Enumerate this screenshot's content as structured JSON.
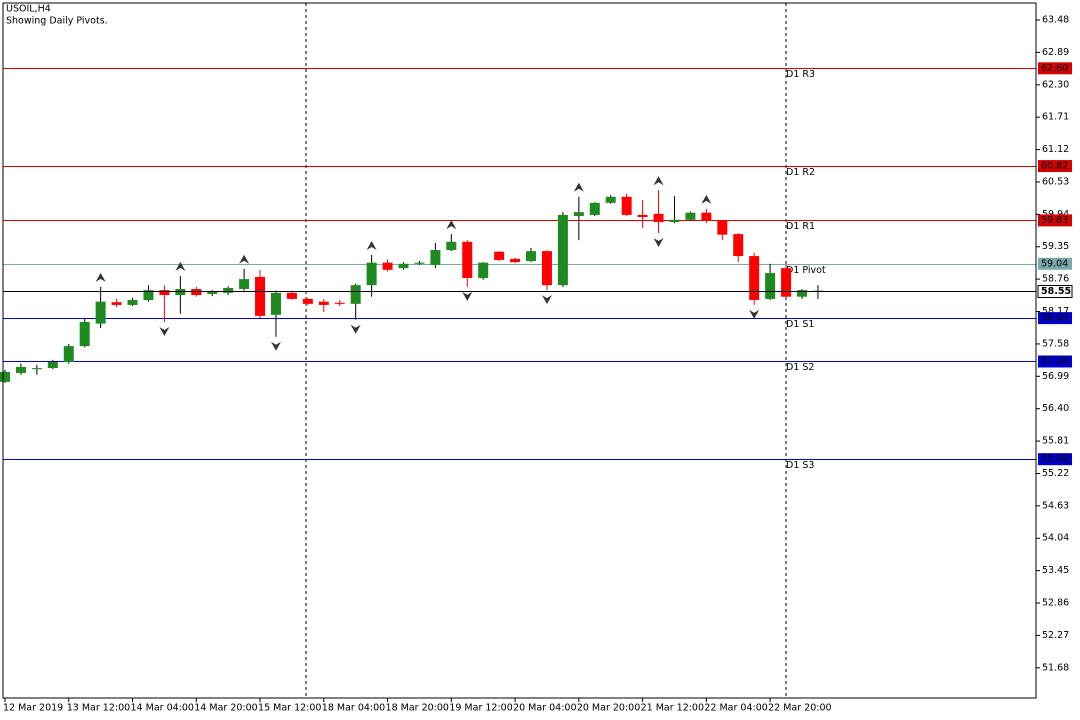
{
  "chart_data": {
    "type": "candlestick",
    "title": "USOIL,H4",
    "subtitle": "Showing Daily Pivots.",
    "categories": [
      "12 Mar 2019",
      null,
      null,
      null,
      "13 Mar 12:00",
      null,
      null,
      null,
      "14 Mar 04:00",
      null,
      null,
      null,
      "14 Mar 20:00",
      null,
      null,
      null,
      "15 Mar 12:00",
      null,
      null,
      null,
      "18 Mar 04:00",
      null,
      null,
      null,
      "18 Mar 20:00",
      null,
      null,
      null,
      "19 Mar 12:00",
      null,
      null,
      null,
      "20 Mar 04:00",
      null,
      null,
      null,
      "20 Mar 20:00",
      null,
      null,
      null,
      "21 Mar 12:00",
      null,
      null,
      null,
      "22 Mar 04:00",
      null,
      null,
      null,
      "22 Mar 20:00",
      null,
      null,
      null
    ],
    "open": [
      56.89,
      57.05,
      57.12,
      57.14,
      57.25,
      57.54,
      57.95,
      58.34,
      58.29,
      58.38,
      58.56,
      58.47,
      58.58,
      58.49,
      58.51,
      58.58,
      58.8,
      58.11,
      58.51,
      58.4,
      58.35,
      58.33,
      58.31,
      58.65,
      59.06,
      58.96,
      59.04,
      59.02,
      59.29,
      59.44,
      58.78,
      59.26,
      59.13,
      59.09,
      59.27,
      58.65,
      59.91,
      59.93,
      60.15,
      60.26,
      59.93,
      59.95,
      59.8,
      59.84,
      59.97,
      59.82,
      59.58,
      59.18,
      58.4,
      58.96,
      58.44,
      58.55
    ],
    "high": [
      57.11,
      57.22,
      57.2,
      57.29,
      57.58,
      58.05,
      58.62,
      58.4,
      58.42,
      58.65,
      58.65,
      58.82,
      58.62,
      58.56,
      58.63,
      58.95,
      58.93,
      58.55,
      58.55,
      58.42,
      58.4,
      58.38,
      58.67,
      59.2,
      59.12,
      59.07,
      59.09,
      59.42,
      59.58,
      59.47,
      59.07,
      59.27,
      59.15,
      59.33,
      59.29,
      59.98,
      60.26,
      60.16,
      60.29,
      60.31,
      60.2,
      60.38,
      60.27,
      59.99,
      60.04,
      59.84,
      59.6,
      59.24,
      59.04,
      59.02,
      58.58,
      58.65
    ],
    "low": [
      56.87,
      57.02,
      57.02,
      57.12,
      57.22,
      57.52,
      57.87,
      58.25,
      58.27,
      58.35,
      57.98,
      58.13,
      58.44,
      58.45,
      58.47,
      58.55,
      58.05,
      57.71,
      58.38,
      58.29,
      58.16,
      58.27,
      58.02,
      58.44,
      58.9,
      58.93,
      59.02,
      58.96,
      59.27,
      58.62,
      58.75,
      59.09,
      59.05,
      59.07,
      58.56,
      58.62,
      59.47,
      59.91,
      60.13,
      59.91,
      59.69,
      59.6,
      59.78,
      59.82,
      59.78,
      59.47,
      59.07,
      58.29,
      58.38,
      58.42,
      58.4,
      58.4
    ],
    "close": [
      57.07,
      57.16,
      57.14,
      57.25,
      57.54,
      57.98,
      58.35,
      58.29,
      58.38,
      58.56,
      58.47,
      58.58,
      58.47,
      58.53,
      58.6,
      58.76,
      58.09,
      58.51,
      58.4,
      58.31,
      58.29,
      58.31,
      58.65,
      59.06,
      58.93,
      59.04,
      59.06,
      59.29,
      59.44,
      58.78,
      59.06,
      59.11,
      59.07,
      59.27,
      58.65,
      59.93,
      59.98,
      60.15,
      60.26,
      59.93,
      59.89,
      59.8,
      59.84,
      59.97,
      59.82,
      59.57,
      59.18,
      58.38,
      58.87,
      58.44,
      58.56,
      58.55
    ],
    "up_color": "#1f8a1f",
    "down_color": "#ff0000",
    "fractals": {
      "up": [
        6,
        11,
        15,
        23,
        28,
        36,
        41,
        44
      ],
      "down": [
        10,
        17,
        22,
        29,
        34,
        41,
        47
      ]
    },
    "ylim": [
      51.13,
      63.79
    ],
    "yticks": [
      63.48,
      62.89,
      {
        "value": 62.3,
        "label": "62.30"
      },
      61.71,
      61.12,
      60.53,
      59.94,
      59.35,
      58.76,
      58.17,
      57.58,
      56.99,
      {
        "value": 56.4,
        "label": "56.40"
      },
      55.81,
      55.22,
      54.63,
      54.04,
      53.45,
      52.86,
      52.27,
      51.68
    ],
    "levels": [
      {
        "name": "D1 R3",
        "value": 62.6,
        "label": "62.60",
        "color": "#d40000"
      },
      {
        "name": "D1 R2",
        "value": 60.82,
        "label": "60.82",
        "color": "#d40000"
      },
      {
        "name": "D1 R1",
        "value": 59.83,
        "label": "59.83",
        "color": "#d40000"
      },
      {
        "name": "D1 Pivot",
        "value": 59.04,
        "label": "59.04",
        "color": "#7aa9a9"
      },
      {
        "name": "D1 S1",
        "value": 58.05,
        "label": "58.05",
        "color": "#0000c8"
      },
      {
        "name": "D1 S2",
        "value": 57.26,
        "label": "57.26",
        "color": "#0000c8"
      },
      {
        "name": "D1 S3",
        "value": 55.48,
        "label": "55.48",
        "color": "#0000c8"
      }
    ],
    "current_price": 58.55
  }
}
